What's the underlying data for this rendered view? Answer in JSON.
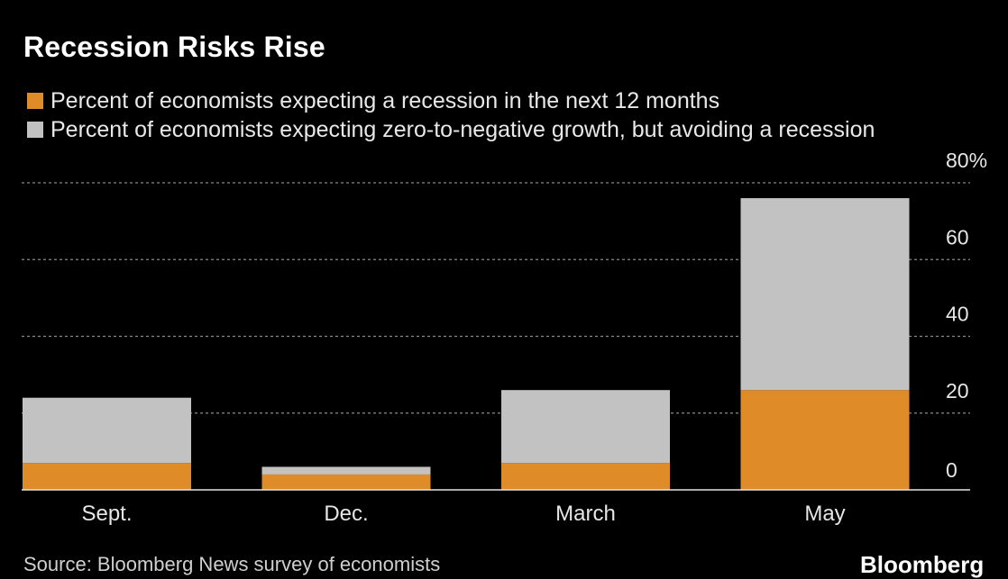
{
  "title": "Recession Risks Rise",
  "legend": [
    {
      "label": "Percent of economists expecting a recession in the next 12 months",
      "color": "#df8b27"
    },
    {
      "label": "Percent of economists expecting zero-to-negative growth, but avoiding a recession",
      "color": "#c2c2c2"
    }
  ],
  "source": "Source: Bloomberg News survey of economists",
  "brand": "Bloomberg",
  "chart_data": {
    "type": "bar",
    "stacked": true,
    "categories": [
      "Sept.",
      "Dec.",
      "March",
      "May"
    ],
    "series": [
      {
        "name": "Percent of economists expecting a recession in the next 12 months",
        "values": [
          7,
          4,
          7,
          26
        ],
        "color": "#df8b27"
      },
      {
        "name": "Percent of economists expecting zero-to-negative growth, but avoiding a recession",
        "values": [
          17,
          2,
          19,
          50
        ],
        "color": "#c2c2c2"
      }
    ],
    "ylim": [
      0,
      80
    ],
    "yticks": [
      0,
      20,
      40,
      60,
      80
    ],
    "ytick_labels": [
      "0",
      "20",
      "40",
      "60",
      "80%"
    ],
    "y_axis_side": "right",
    "grid": true,
    "background": "#000000"
  }
}
